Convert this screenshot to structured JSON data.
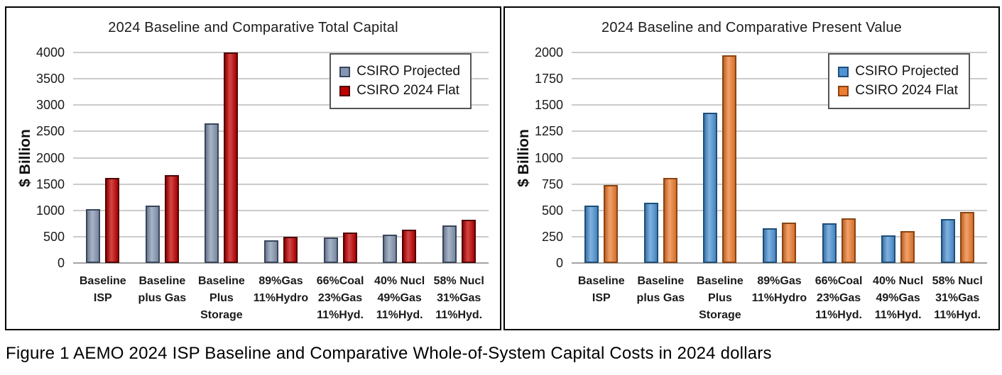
{
  "caption": "Figure 1 AEMO 2024 ISP Baseline and Comparative Whole-of-System Capital Costs in 2024 dollars",
  "colors": {
    "panel_border": "#000000",
    "gridline": "#cbcbcb",
    "zero_axis": "#a3a3a3",
    "legend_border": "#555555"
  },
  "chart_data": [
    {
      "type": "bar",
      "title": "2024 Baseline and Comparative Total Capital",
      "xlabel": "",
      "ylabel": "$ Billion",
      "ylim": [
        0,
        4000
      ],
      "yticks": [
        0,
        500,
        1000,
        1500,
        2000,
        2500,
        3000,
        3500,
        4000
      ],
      "grid": true,
      "legend_position": "top-right",
      "categories": [
        "Baseline ISP",
        "Baseline plus Gas",
        "Baseline Plus Storage",
        "89%Gas 11%Hydro",
        "66%Coal 23%Gas 11%Hyd.",
        "40% Nucl 49%Gas 11%Hyd.",
        "58% Nucl 31%Gas 11%Hyd."
      ],
      "category_lines": [
        [
          "Baseline",
          "ISP"
        ],
        [
          "Baseline",
          "plus Gas"
        ],
        [
          "Baseline",
          "Plus",
          "Storage"
        ],
        [
          "89%Gas",
          "11%Hydro"
        ],
        [
          "66%Coal",
          "23%Gas",
          "11%Hyd."
        ],
        [
          "40% Nucl",
          "49%Gas",
          "11%Hyd."
        ],
        [
          "58% Nucl",
          "31%Gas",
          "11%Hyd."
        ]
      ],
      "series": [
        {
          "name": "CSIRO Projected",
          "fill": "#8697B2",
          "border": "#39465C",
          "values": [
            1020,
            1090,
            2660,
            430,
            480,
            545,
            710
          ]
        },
        {
          "name": "CSIRO 2024 Flat",
          "fill": "#C00000",
          "border": "#4F0606",
          "values": [
            1610,
            1670,
            4000,
            500,
            575,
            630,
            825
          ]
        }
      ]
    },
    {
      "type": "bar",
      "title": "2024 Baseline and Comparative Present Value",
      "xlabel": "",
      "ylabel": "$ Billion",
      "ylim": [
        0,
        2000
      ],
      "yticks": [
        0,
        250,
        500,
        750,
        1000,
        1250,
        1500,
        1750,
        2000
      ],
      "grid": true,
      "legend_position": "top-right",
      "categories": [
        "Baseline ISP",
        "Baseline plus Gas",
        "Baseline Plus Storage",
        "89%Gas 11%Hydro",
        "66%Coal 23%Gas 11%Hyd.",
        "40% Nucl 49%Gas 11%Hyd.",
        "58% Nucl 31%Gas 11%Hyd."
      ],
      "category_lines": [
        [
          "Baseline",
          "ISP"
        ],
        [
          "Baseline",
          "plus Gas"
        ],
        [
          "Baseline",
          "Plus",
          "Storage"
        ],
        [
          "89%Gas",
          "11%Hydro"
        ],
        [
          "66%Coal",
          "23%Gas",
          "11%Hyd."
        ],
        [
          "40% Nucl",
          "49%Gas",
          "11%Hyd."
        ],
        [
          "58% Nucl",
          "31%Gas",
          "11%Hyd."
        ]
      ],
      "series": [
        {
          "name": "CSIRO Projected",
          "fill": "#4F94D4",
          "border": "#1F4E79",
          "values": [
            545,
            575,
            1425,
            330,
            375,
            265,
            420
          ]
        },
        {
          "name": "CSIRO 2024 Flat",
          "fill": "#ED7D31",
          "border": "#8A4412",
          "values": [
            740,
            805,
            1975,
            385,
            425,
            305,
            485
          ]
        }
      ]
    }
  ]
}
